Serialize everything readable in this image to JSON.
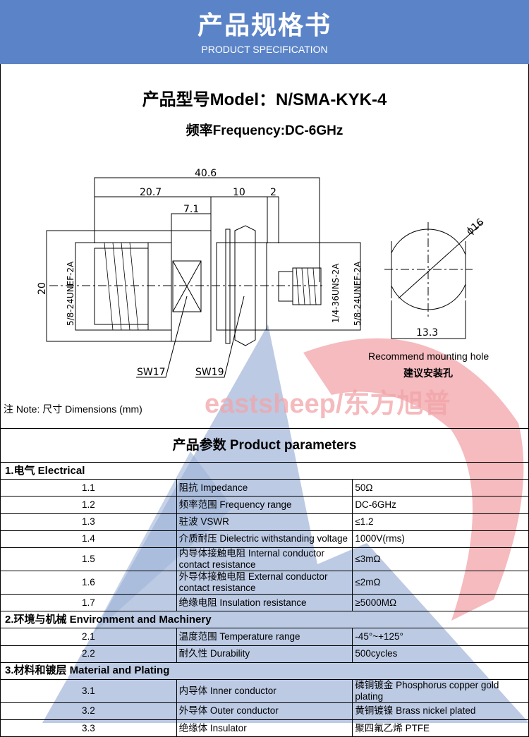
{
  "header": {
    "title": "产品规格书",
    "subtitle": "PRODUCT SPECIFICATION"
  },
  "model": "产品型号Model：N/SMA-KYK-4",
  "frequency": "频率Frequency:DC-6GHz",
  "drawing": {
    "dim_total": "40.6",
    "dim_a": "20.7",
    "dim_b": "10",
    "dim_c": "2",
    "dim_d": "7.1",
    "dim_height": "20",
    "thread_left": "5/8-24UNEF-2A",
    "thread_sma": "1/4-36UNS-2A",
    "thread_right": "5/8-24UNEF-2A",
    "sw1": "SW17",
    "sw2": "SW19",
    "hole_dia": "ϕ16",
    "hole_flat": "13.3",
    "hole_label_en": "Recommend mounting hole",
    "hole_label_cn": "建议安装孔"
  },
  "watermark": "eastsheep/东方旭普",
  "note": "注 Note:  尺寸 Dimensions (mm)",
  "params_title": "产品参数 Product parameters",
  "sections": [
    {
      "title": "1.电气 Electrical",
      "rows": [
        [
          "1.1",
          "阻抗 Impedance",
          "50Ω"
        ],
        [
          "1.2",
          "频率范围 Frequency range",
          "DC-6GHz"
        ],
        [
          "1.3",
          "驻波 VSWR",
          "≤1.2"
        ],
        [
          "1.4",
          "介质耐压 Dielectric withstanding voltage",
          "1000V(rms)"
        ],
        [
          "1.5",
          "内导体接触电阻 Internal conductor contact resistance",
          "≤3mΩ"
        ],
        [
          "1.6",
          "外导体接触电阻 External conductor contact resistance",
          "≤2mΩ"
        ],
        [
          "1.7",
          "绝缘电阻  Insulation resistance",
          "≥5000MΩ"
        ]
      ]
    },
    {
      "title": "2.环境与机械 Environment and Machinery",
      "rows": [
        [
          "2.1",
          "温度范围 Temperature range",
          "-45°~+125°"
        ],
        [
          "2.2",
          "耐久性 Durability",
          "500cycles"
        ]
      ]
    },
    {
      "title": "3.材料和镀层 Material and Plating",
      "rows": [
        [
          "3.1",
          "内导体 Inner conductor",
          "磷铜镀金 Phosphorus copper gold plating"
        ],
        [
          "3.2",
          "外导体 Outer conductor",
          "黄铜镀镍 Brass nickel plated"
        ],
        [
          "3.3",
          "绝缘体 Insulator",
          "聚四氟乙烯 PTFE"
        ]
      ]
    }
  ],
  "colors": {
    "header": "#5b84c8",
    "watermark_blue": "#9fb4d8",
    "watermark_red": "#f2a4a8"
  }
}
